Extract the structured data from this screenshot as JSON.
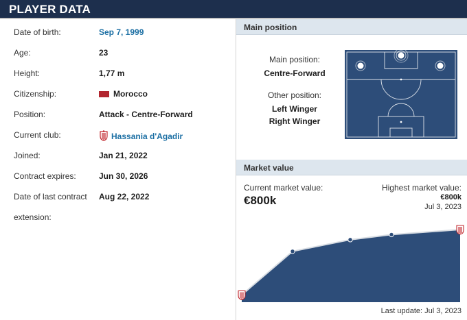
{
  "header": {
    "title": "PLAYER DATA"
  },
  "player_data": [
    {
      "label": "Date of birth:",
      "value": "Sep 7, 1999",
      "link": true
    },
    {
      "label": "Age:",
      "value": "23"
    },
    {
      "label": "Height:",
      "value": "1,77 m"
    },
    {
      "label": "Citizenship:",
      "value": "Morocco",
      "flag": "#b2262f"
    },
    {
      "label": "Position:",
      "value": "Attack - Centre-Forward"
    },
    {
      "label": "Current club:",
      "value": "Hassania d'Agadir",
      "link": true,
      "icon": "club-crest-icon"
    },
    {
      "label": "Joined:",
      "value": "Jan 21, 2022"
    },
    {
      "label": "Contract expires:",
      "value": "Jun 30, 2026"
    },
    {
      "label": "Date of last contract",
      "value": "Aug 22, 2022"
    },
    {
      "label": "extension:",
      "value": ""
    }
  ],
  "main_position": {
    "heading": "Main position",
    "main_label": "Main position:",
    "main_value": "Centre-Forward",
    "other_label": "Other position:",
    "other_values": [
      "Left Winger",
      "Right Winger"
    ]
  },
  "market_value": {
    "heading": "Market value",
    "current_label": "Current market value:",
    "current_value": "€800k",
    "highest_label": "Highest market value:",
    "highest_value": "€800k",
    "highest_date": "Jul 3, 2023",
    "last_update": "Last update: Jul 3, 2023"
  },
  "chart_data": {
    "type": "area",
    "values": [
      0.1,
      0.7,
      0.86,
      0.93,
      1.0
    ],
    "points_marked": [
      false,
      true,
      true,
      true,
      false
    ],
    "fill_color": "#2d4d79",
    "line_color": "#d8dde3",
    "crest_endpoints": true
  },
  "colors": {
    "header_bg": "#1d2f4d",
    "link": "#1a6ea3",
    "pitch": "#2d4d79",
    "section_head": "#dde6ee"
  }
}
